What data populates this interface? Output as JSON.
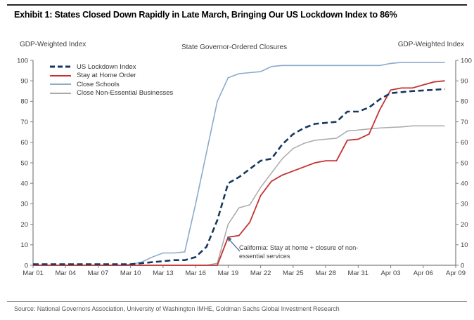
{
  "page": {
    "title": "Exhibit 1: States Closed Down Rapidly in Late March, Bringing Our US Lockdown Index to 86%",
    "source": "Source: National Governors Association, University of Washington IMHE, Goldman Sachs Global Investment Research"
  },
  "chart_data": {
    "type": "line",
    "title": "State Governor-Ordered Closures",
    "left_axis_label": "GDP-Weighted Index",
    "right_axis_label": "GDP-Weighted Index",
    "ylim": [
      0,
      100
    ],
    "yticks": [
      0,
      10,
      20,
      30,
      40,
      50,
      60,
      70,
      80,
      90,
      100
    ],
    "x_tick_labels": [
      "Mar 01",
      "Mar 04",
      "Mar 07",
      "Mar 10",
      "Mar 13",
      "Mar 16",
      "Mar 19",
      "Mar 22",
      "Mar 25",
      "Mar 28",
      "Mar 31",
      "Apr 03",
      "Apr 06",
      "Apr 09"
    ],
    "x_total_days": 39,
    "x_tick_interval_days": 3,
    "grid": false,
    "legend_position": "top-left-inside",
    "axis_color": "#7f7f7f",
    "tick_label_color": "#3f3f3f",
    "annotation": {
      "text_line1": "California: Stay at home + closure of non-",
      "text_line2": "essential services",
      "arrow_color": "#44618b"
    },
    "series": [
      {
        "name": "US Lockdown Index",
        "color": "#17375E",
        "style": "dashed",
        "width": 2.6,
        "values": [
          0.5,
          0.5,
          0.5,
          0.5,
          0.5,
          0.5,
          0.5,
          0.5,
          0.5,
          0.5,
          1,
          1.5,
          2,
          2.5,
          2.5,
          4,
          9,
          22,
          40,
          43,
          47,
          51,
          52,
          59,
          64,
          67,
          69,
          69.5,
          70,
          75,
          75,
          77,
          81,
          84,
          84.5,
          85,
          85.3,
          85.6,
          86
        ]
      },
      {
        "name": "Stay at Home Order",
        "color": "#C43231",
        "style": "solid",
        "width": 1.8,
        "values": [
          0,
          0,
          0,
          0,
          0,
          0,
          0,
          0,
          0,
          0,
          0,
          0,
          0,
          0,
          0,
          0,
          0,
          0,
          13.7,
          14.5,
          21,
          34,
          41,
          44,
          46,
          48,
          50,
          51,
          51,
          61,
          61.5,
          64,
          76,
          85.5,
          86.5,
          86.5,
          88,
          89.5,
          90
        ]
      },
      {
        "name": "Close Schools",
        "color": "#8CAACB",
        "style": "solid",
        "width": 1.6,
        "values": [
          0,
          0,
          0,
          0,
          0,
          0,
          0,
          0,
          0,
          0.5,
          1.5,
          4,
          6,
          6,
          6.5,
          30,
          55,
          80,
          91.5,
          93.5,
          94,
          94.5,
          97,
          97.5,
          97.5,
          97.5,
          97.5,
          97.5,
          97.5,
          97.5,
          97.5,
          97.5,
          97.5,
          98.5,
          99,
          99,
          99,
          99,
          99
        ]
      },
      {
        "name": "Close Non-Essential Businesses",
        "color": "#A9A9A9",
        "style": "solid",
        "width": 1.5,
        "values": [
          0,
          0,
          0,
          0,
          0,
          0,
          0,
          0,
          0,
          0,
          0,
          0,
          0,
          0,
          0,
          0,
          0,
          1,
          20,
          28,
          29.5,
          38,
          45,
          52,
          57,
          59.5,
          61,
          61.5,
          62,
          65.5,
          66,
          66.5,
          67,
          67.3,
          67.5,
          68,
          68,
          68,
          68
        ]
      }
    ]
  }
}
